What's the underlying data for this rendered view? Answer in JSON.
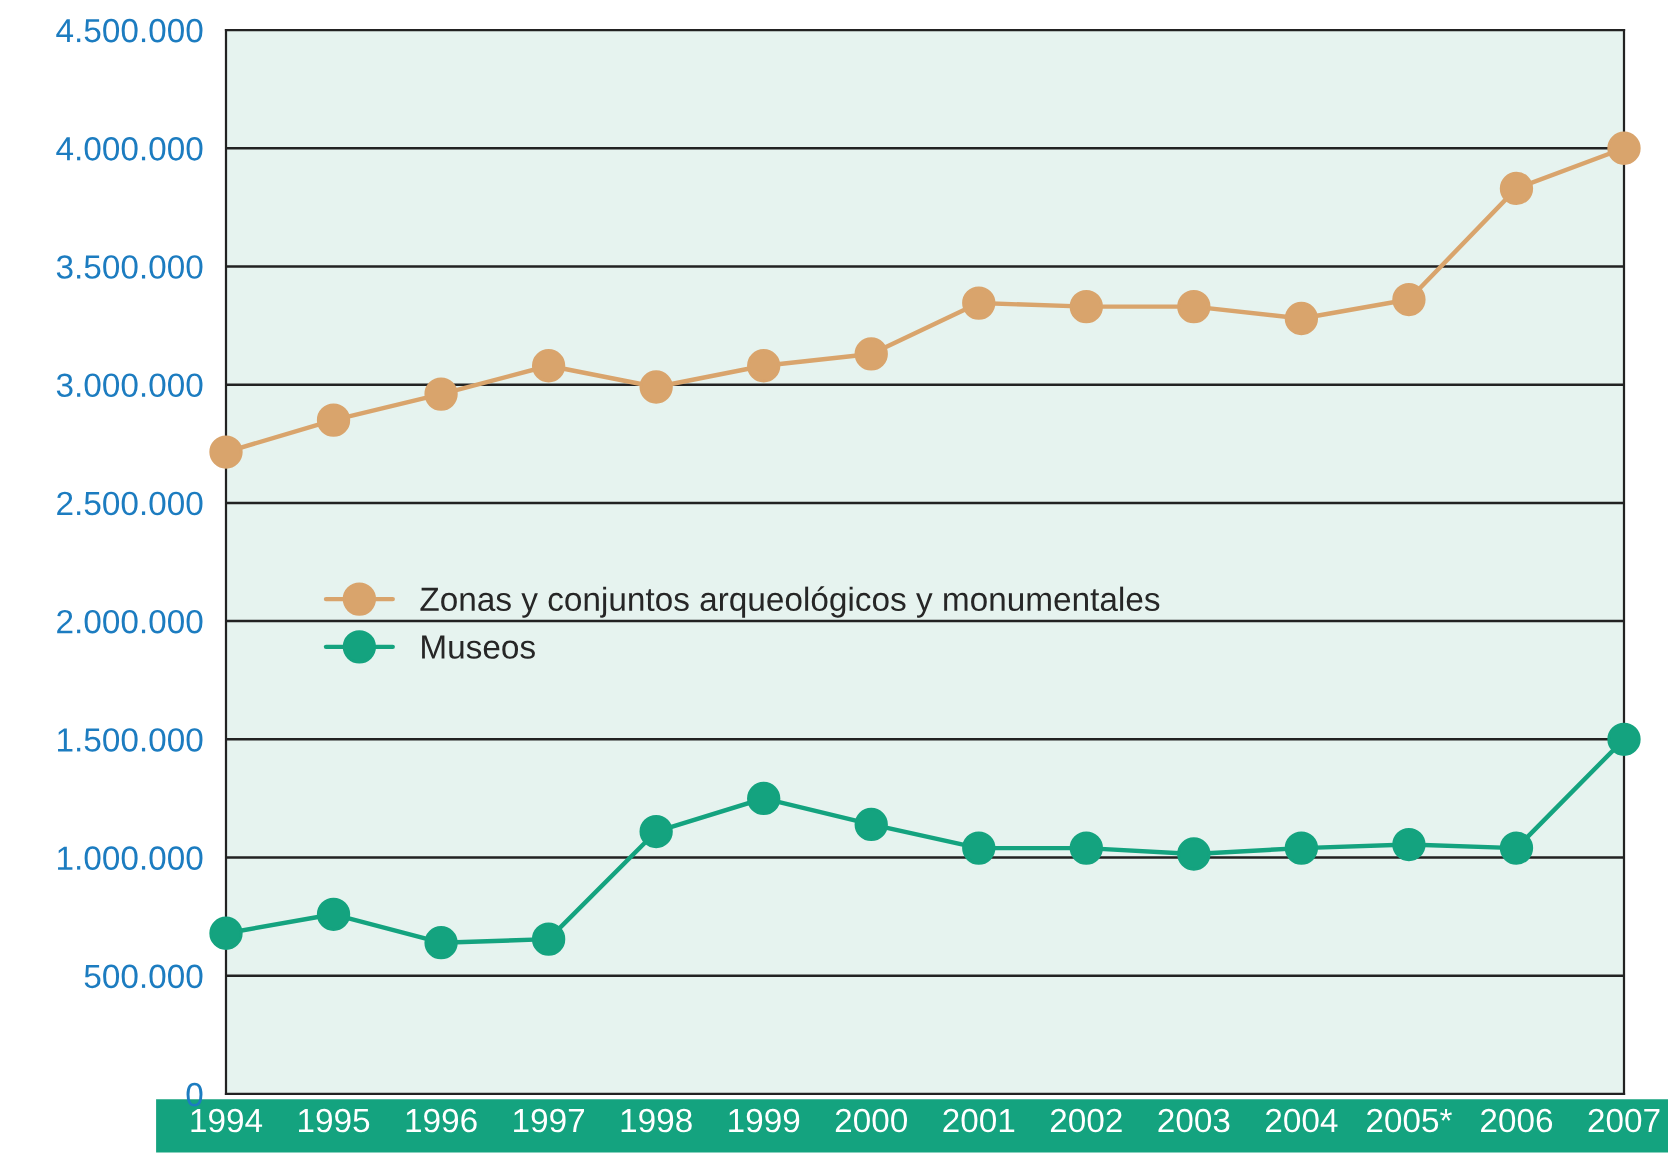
{
  "chart_data": {
    "type": "line",
    "categories": [
      "1994",
      "1995",
      "1996",
      "1997",
      "1998",
      "1999",
      "2000",
      "2001",
      "2002",
      "2003",
      "2004",
      "2005*",
      "2006",
      "2007"
    ],
    "series": [
      {
        "name": "Zonas y conjuntos arqueológicos y monumentales",
        "color": "#d9a46c",
        "values": [
          2715000,
          2850000,
          2960000,
          3080000,
          2990000,
          3080000,
          3130000,
          3345000,
          3330000,
          3330000,
          3280000,
          3360000,
          3830000,
          4000000
        ]
      },
      {
        "name": "Museos",
        "color": "#14a37f",
        "values": [
          680000,
          760000,
          640000,
          655000,
          1110000,
          1250000,
          1140000,
          1040000,
          1040000,
          1015000,
          1040000,
          1055000,
          1040000,
          1500000
        ]
      }
    ],
    "ylim": [
      0,
      4500000
    ],
    "yticks": [
      0,
      {
        "value": 500000,
        "label": "500.000"
      },
      {
        "value": 1000000,
        "label": "1.000.000"
      },
      {
        "value": 1500000,
        "label": "1.500.000"
      },
      {
        "value": 2000000,
        "label": "2.000.000"
      },
      {
        "value": 2500000,
        "label": "2.500.000"
      },
      {
        "value": 3000000,
        "label": "3.000.000"
      },
      {
        "value": 3500000,
        "label": "3.500.000"
      },
      {
        "value": 4000000,
        "label": "4.000.000"
      },
      {
        "value": 4500000,
        "label": "4.500.000"
      }
    ],
    "grid": "y",
    "legend": "center",
    "marker": "circle",
    "line_style": "solid"
  }
}
